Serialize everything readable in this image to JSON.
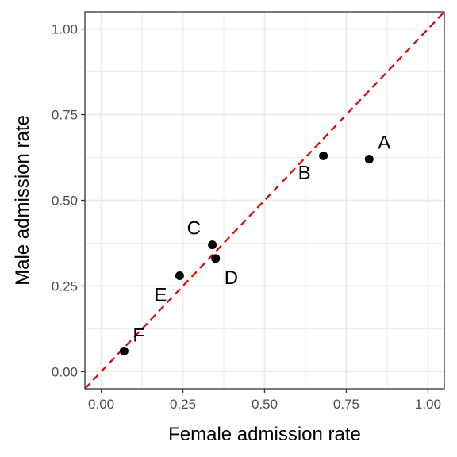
{
  "chart_data": {
    "type": "scatter",
    "title": "",
    "xlabel": "Female admission rate",
    "ylabel": "Male admission rate",
    "xlim": [
      -0.05,
      1.05
    ],
    "ylim": [
      -0.05,
      1.05
    ],
    "x_ticks": [
      0.0,
      0.25,
      0.5,
      0.75,
      1.0
    ],
    "y_ticks": [
      0.0,
      0.25,
      0.5,
      0.75,
      1.0
    ],
    "x_tick_labels": [
      "0.00",
      "0.25",
      "0.50",
      "0.75",
      "1.00"
    ],
    "y_tick_labels": [
      "0.00",
      "0.25",
      "0.50",
      "0.75",
      "1.00"
    ],
    "grid": true,
    "theme": "bw",
    "points": [
      {
        "label": "A",
        "x": 0.82,
        "y": 0.62
      },
      {
        "label": "B",
        "x": 0.68,
        "y": 0.63
      },
      {
        "label": "C",
        "x": 0.34,
        "y": 0.37
      },
      {
        "label": "D",
        "x": 0.35,
        "y": 0.33
      },
      {
        "label": "E",
        "x": 0.24,
        "y": 0.28
      },
      {
        "label": "F",
        "x": 0.07,
        "y": 0.06
      }
    ],
    "reference_line": {
      "type": "identity",
      "slope": 1,
      "intercept": 0,
      "color": "#e00000",
      "style": "dashed"
    },
    "colors": {
      "point": "#000000",
      "grid": "#ebebeb",
      "panel_border": "#333333",
      "reference_line": "#e00000"
    }
  }
}
